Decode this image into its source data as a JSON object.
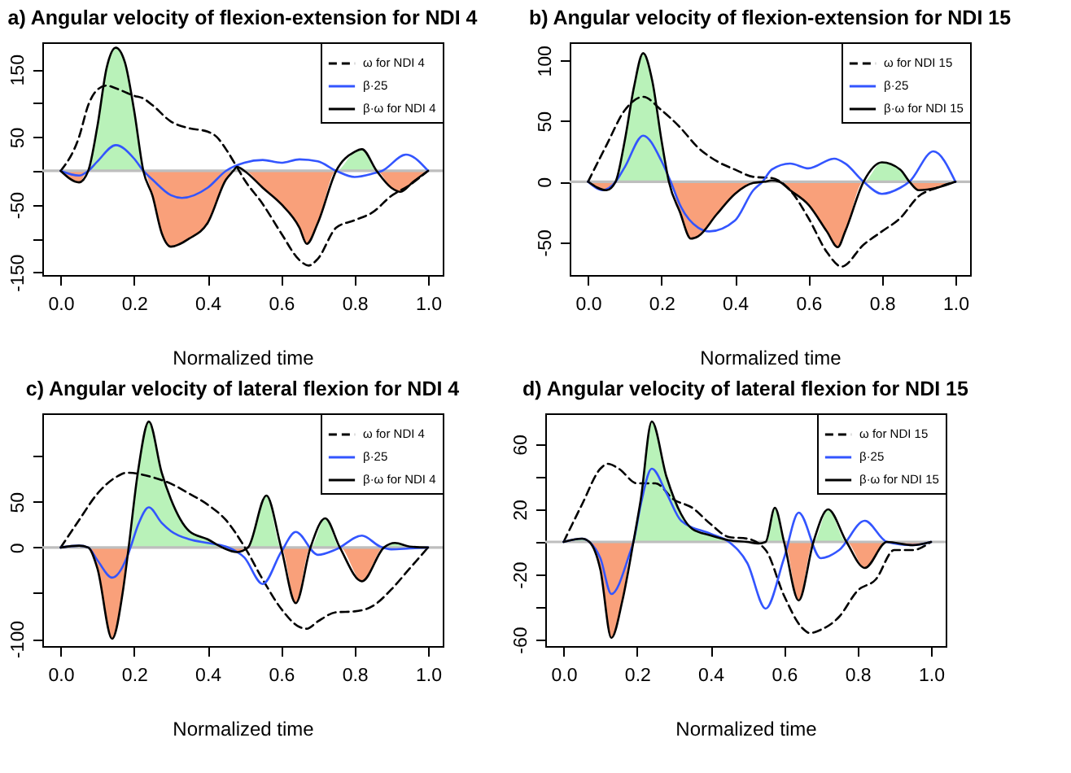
{
  "chart_data": [
    {
      "type": "line",
      "title": "a) Angular velocity of flexion-extension for NDI 4",
      "xlabel": "Normalized time",
      "xlim": [
        -0.05,
        1.04
      ],
      "xticks": [
        {
          "value": 0,
          "label": "0.0"
        },
        {
          "value": 0.2,
          "label": "0.2"
        },
        {
          "value": 0.4,
          "label": "0.4"
        },
        {
          "value": 0.6,
          "label": "0.6"
        },
        {
          "value": 0.8,
          "label": "0.8"
        },
        {
          "value": 1,
          "label": "1.0"
        }
      ],
      "ylim": [
        -154,
        190
      ],
      "yticks": [
        -150,
        {
          "value": -100,
          "label": null
        },
        -50,
        {
          "value": 0,
          "label": null
        },
        50,
        {
          "value": 100,
          "label": null
        },
        150
      ],
      "legend": "top right",
      "ref_lines": [
        {
          "axis": "y",
          "value": 0,
          "color": "#bebebe"
        }
      ],
      "series": [
        {
          "type": "area",
          "color": "#b9f2b9",
          "x": [
            0,
            0.05,
            0.075,
            0.1,
            0.125,
            0.15,
            0.175,
            0.2,
            0.225,
            0.25,
            0.275,
            0.3,
            0.35,
            0.4,
            0.45,
            0.47,
            0.48,
            0.5,
            0.55,
            0.6,
            0.65,
            0.67,
            0.7,
            0.75,
            0.8,
            0.82,
            0.86,
            0.9,
            0.925,
            0.96,
            1
          ],
          "values": [
            0,
            0,
            0,
            66,
            152,
            182,
            160,
            89,
            0,
            0,
            0,
            0,
            0,
            0,
            0,
            0,
            6,
            0,
            0,
            0,
            0,
            0,
            0,
            0,
            28,
            32,
            0,
            0,
            0,
            0,
            0
          ]
        },
        {
          "type": "area",
          "color": "#f9a07a",
          "x": [
            0,
            0.05,
            0.075,
            0.1,
            0.125,
            0.15,
            0.175,
            0.2,
            0.225,
            0.25,
            0.275,
            0.3,
            0.35,
            0.4,
            0.45,
            0.47,
            0.48,
            0.5,
            0.55,
            0.6,
            0.65,
            0.67,
            0.7,
            0.75,
            0.8,
            0.82,
            0.86,
            0.9,
            0.925,
            0.96,
            1
          ],
          "values": [
            0,
            -17,
            0,
            0,
            0,
            0,
            0,
            0,
            0,
            -37,
            -92,
            -112,
            -100,
            -77,
            -13,
            0,
            0,
            0,
            -25,
            -49,
            -84,
            -108,
            -77,
            0,
            0,
            0,
            0,
            -25,
            -31,
            -16,
            0
          ]
        },
        {
          "name": "ω for NDI 4",
          "color": "#000000",
          "line_style": "dashed",
          "x": [
            0,
            0.05,
            0.075,
            0.1,
            0.125,
            0.15,
            0.2,
            0.225,
            0.25,
            0.3,
            0.35,
            0.4,
            0.425,
            0.45,
            0.475,
            0.5,
            0.55,
            0.6,
            0.65,
            0.675,
            0.7,
            0.75,
            0.8,
            0.85,
            0.9,
            0.95,
            1
          ],
          "values": [
            0,
            50,
            97,
            120,
            126,
            122,
            111,
            107,
            97,
            73,
            63,
            58,
            50,
            32,
            10,
            -13,
            -49,
            -92,
            -132,
            -140,
            -130,
            -84,
            -73,
            -61,
            -37,
            -21,
            0
          ]
        },
        {
          "name": "β·25",
          "color": "#3355ff",
          "line_style": "solid",
          "x": [
            0,
            0.05,
            0.075,
            0.1,
            0.15,
            0.2,
            0.225,
            0.25,
            0.3,
            0.33,
            0.4,
            0.45,
            0.5,
            0.55,
            0.6,
            0.65,
            0.7,
            0.75,
            0.8,
            0.85,
            0.875,
            0.94,
            1
          ],
          "values": [
            0,
            -7,
            0,
            14,
            38,
            18,
            0,
            -13,
            -36,
            -40,
            -25,
            0,
            12,
            16,
            12,
            17,
            14,
            0,
            -9,
            -4,
            0,
            24,
            0
          ]
        },
        {
          "name": "β·ω for NDI 4",
          "color": "#000000",
          "line_style": "solid",
          "x": [
            0,
            0.05,
            0.075,
            0.1,
            0.125,
            0.15,
            0.175,
            0.2,
            0.225,
            0.25,
            0.275,
            0.3,
            0.35,
            0.4,
            0.45,
            0.47,
            0.48,
            0.5,
            0.55,
            0.6,
            0.65,
            0.67,
            0.7,
            0.75,
            0.8,
            0.82,
            0.86,
            0.9,
            0.925,
            0.96,
            1
          ],
          "values": [
            0,
            -17,
            0,
            66,
            152,
            182,
            160,
            89,
            0,
            -37,
            -92,
            -112,
            -100,
            -77,
            -13,
            0,
            6,
            0,
            -25,
            -49,
            -84,
            -108,
            -77,
            0,
            28,
            32,
            0,
            -25,
            -31,
            -16,
            0
          ]
        }
      ]
    },
    {
      "type": "line",
      "title": "b) Angular velocity of flexion-extension for NDI 15",
      "xlabel": "Normalized time",
      "xlim": [
        -0.05,
        1.04
      ],
      "xticks": [
        {
          "value": 0,
          "label": "0.0"
        },
        {
          "value": 0.2,
          "label": "0.2"
        },
        {
          "value": 0.4,
          "label": "0.4"
        },
        {
          "value": 0.6,
          "label": "0.6"
        },
        {
          "value": 0.8,
          "label": "0.8"
        },
        {
          "value": 1,
          "label": "1.0"
        }
      ],
      "ylim": [
        -77,
        115
      ],
      "yticks": [
        -50,
        0,
        50,
        100
      ],
      "legend": "top right",
      "ref_lines": [
        {
          "axis": "y",
          "value": 0,
          "color": "#bebebe"
        }
      ],
      "series": [
        {
          "type": "area",
          "color": "#b9f2b9",
          "x": [
            0,
            0.05,
            0.075,
            0.1,
            0.125,
            0.15,
            0.175,
            0.2,
            0.22,
            0.25,
            0.28,
            0.3,
            0.35,
            0.4,
            0.45,
            0.48,
            0.5,
            0.52,
            0.55,
            0.6,
            0.65,
            0.68,
            0.7,
            0.75,
            0.8,
            0.85,
            0.875,
            0.9,
            0.95,
            1
          ],
          "values": [
            0,
            0,
            0,
            34,
            78,
            106,
            83,
            34,
            0,
            0,
            0,
            0,
            0,
            0,
            0,
            0,
            1,
            0,
            0,
            0,
            0,
            0,
            0,
            0,
            16,
            10,
            0,
            0,
            0,
            0
          ]
        },
        {
          "type": "area",
          "color": "#f9a07a",
          "x": [
            0,
            0.05,
            0.075,
            0.1,
            0.125,
            0.15,
            0.175,
            0.2,
            0.22,
            0.25,
            0.28,
            0.3,
            0.35,
            0.4,
            0.45,
            0.48,
            0.5,
            0.52,
            0.55,
            0.6,
            0.65,
            0.68,
            0.7,
            0.75,
            0.8,
            0.85,
            0.875,
            0.9,
            0.95,
            1
          ],
          "values": [
            0,
            -7,
            0,
            0,
            0,
            0,
            0,
            0,
            0,
            -25,
            -47,
            -45,
            -27,
            -10,
            -1,
            0,
            0,
            0,
            -7,
            -19,
            -41,
            -54,
            -41,
            0,
            0,
            0,
            0,
            -7,
            -5,
            0
          ]
        },
        {
          "name": "ω for NDI 15",
          "color": "#000000",
          "line_style": "dashed",
          "x": [
            0,
            0.05,
            0.1,
            0.15,
            0.2,
            0.25,
            0.3,
            0.35,
            0.4,
            0.45,
            0.5,
            0.55,
            0.6,
            0.65,
            0.69,
            0.75,
            0.8,
            0.85,
            0.9,
            0.95,
            1
          ],
          "values": [
            0,
            30,
            59,
            70,
            59,
            45,
            28,
            17,
            10,
            4,
            3,
            -7,
            -30,
            -58,
            -70,
            -52,
            -41,
            -30,
            -12,
            -5,
            0
          ]
        },
        {
          "name": "β·25",
          "color": "#3355ff",
          "line_style": "solid",
          "x": [
            0,
            0.04,
            0.075,
            0.1,
            0.15,
            0.2,
            0.225,
            0.25,
            0.3,
            0.33,
            0.4,
            0.45,
            0.475,
            0.5,
            0.55,
            0.6,
            0.67,
            0.7,
            0.75,
            0.8,
            0.85,
            0.875,
            0.94,
            1
          ],
          "values": [
            0,
            -7,
            0,
            12,
            38,
            17,
            0,
            -19,
            -38,
            -41,
            -32,
            -7,
            0,
            10,
            15,
            11,
            19,
            15,
            0,
            -10,
            -5,
            0,
            25,
            0
          ]
        },
        {
          "name": "β·ω for NDI 15",
          "color": "#000000",
          "line_style": "solid",
          "x": [
            0,
            0.05,
            0.075,
            0.1,
            0.125,
            0.15,
            0.175,
            0.2,
            0.22,
            0.25,
            0.28,
            0.3,
            0.35,
            0.4,
            0.45,
            0.48,
            0.5,
            0.52,
            0.55,
            0.6,
            0.65,
            0.68,
            0.7,
            0.75,
            0.8,
            0.85,
            0.875,
            0.9,
            0.95,
            1
          ],
          "values": [
            0,
            -7,
            0,
            34,
            78,
            106,
            83,
            34,
            0,
            -25,
            -47,
            -45,
            -27,
            -10,
            -1,
            0,
            1,
            0,
            -7,
            -19,
            -41,
            -54,
            -41,
            0,
            16,
            10,
            0,
            -7,
            -5,
            0
          ]
        }
      ]
    },
    {
      "type": "line",
      "title": "c) Angular velocity of lateral flexion for NDI 4",
      "xlabel": "Normalized time",
      "xlim": [
        -0.05,
        1.04
      ],
      "xticks": [
        {
          "value": 0,
          "label": "0.0"
        },
        {
          "value": 0.2,
          "label": "0.2"
        },
        {
          "value": 0.4,
          "label": "0.4"
        },
        {
          "value": 0.6,
          "label": "0.6"
        },
        {
          "value": 0.8,
          "label": "0.8"
        },
        {
          "value": 1,
          "label": "1.0"
        }
      ],
      "ylim": [
        -108,
        147
      ],
      "yticks": [
        -100,
        {
          "value": -50,
          "label": null
        },
        0,
        50,
        {
          "value": 100,
          "label": null
        }
      ],
      "legend": "top right",
      "ref_lines": [
        {
          "axis": "y",
          "value": 0,
          "color": "#bebebe"
        }
      ],
      "series": [
        {
          "type": "area",
          "color": "#b9f2b9",
          "x": [
            0,
            0.05,
            0.075,
            0.1,
            0.14,
            0.17,
            0.185,
            0.21,
            0.24,
            0.275,
            0.3,
            0.35,
            0.4,
            0.44,
            0.48,
            0.51,
            0.56,
            0.6,
            0.64,
            0.68,
            0.72,
            0.76,
            0.82,
            0.88,
            0.91,
            0.95,
            1
          ],
          "values": [
            0,
            2,
            0,
            0,
            0,
            0,
            0,
            82,
            138,
            82,
            53,
            18,
            9,
            0,
            0,
            0,
            57,
            0,
            0,
            0,
            32,
            0,
            0,
            0,
            5,
            1,
            0
          ]
        },
        {
          "type": "area",
          "color": "#f9a07a",
          "x": [
            0,
            0.05,
            0.075,
            0.1,
            0.14,
            0.17,
            0.185,
            0.21,
            0.24,
            0.275,
            0.3,
            0.35,
            0.4,
            0.44,
            0.48,
            0.51,
            0.56,
            0.6,
            0.64,
            0.68,
            0.72,
            0.76,
            0.82,
            0.88,
            0.91,
            0.95,
            1
          ],
          "values": [
            0,
            0,
            0,
            -23,
            -100,
            -46,
            0,
            0,
            0,
            0,
            0,
            0,
            0,
            0,
            -5,
            0,
            0,
            0,
            -61,
            0,
            0,
            0,
            -37,
            0,
            0,
            0,
            0
          ]
        },
        {
          "name": "ω for NDI 4",
          "color": "#000000",
          "line_style": "dashed",
          "x": [
            0,
            0.05,
            0.1,
            0.15,
            0.18,
            0.25,
            0.3,
            0.35,
            0.4,
            0.45,
            0.5,
            0.55,
            0.6,
            0.65,
            0.67,
            0.7,
            0.75,
            0.8,
            0.85,
            0.9,
            0.95,
            1
          ],
          "values": [
            0,
            30,
            59,
            77,
            82,
            77,
            70,
            59,
            47,
            30,
            1,
            -35,
            -67,
            -87,
            -89,
            -81,
            -71,
            -70,
            -64,
            -46,
            -23,
            0
          ]
        },
        {
          "name": "β·25",
          "color": "#3355ff",
          "line_style": "solid",
          "x": [
            0,
            0.05,
            0.075,
            0.1,
            0.14,
            0.18,
            0.19,
            0.21,
            0.24,
            0.275,
            0.3,
            0.35,
            0.4,
            0.45,
            0.5,
            0.55,
            0.6,
            0.64,
            0.7,
            0.75,
            0.82,
            0.87,
            0.9,
            0.95,
            1
          ],
          "values": [
            0,
            2,
            0,
            -14,
            -33,
            -11,
            0,
            24,
            44,
            27,
            18,
            9,
            5,
            1,
            -11,
            -40,
            -5,
            17,
            -8,
            -2,
            13,
            1,
            -2,
            -1,
            0
          ]
        },
        {
          "name": "β·ω for NDI 4",
          "color": "#000000",
          "line_style": "solid",
          "x": [
            0,
            0.05,
            0.075,
            0.1,
            0.14,
            0.17,
            0.185,
            0.21,
            0.24,
            0.275,
            0.3,
            0.35,
            0.4,
            0.44,
            0.48,
            0.51,
            0.56,
            0.6,
            0.64,
            0.68,
            0.72,
            0.76,
            0.82,
            0.88,
            0.91,
            0.95,
            1
          ],
          "values": [
            0,
            2,
            0,
            -23,
            -100,
            -46,
            0,
            82,
            138,
            82,
            53,
            18,
            9,
            0,
            -5,
            0,
            57,
            0,
            -61,
            0,
            32,
            0,
            -37,
            0,
            5,
            1,
            0
          ]
        }
      ]
    },
    {
      "type": "line",
      "title": "d) Angular velocity of lateral flexion for NDI 15",
      "xlabel": "Normalized time",
      "xlim": [
        -0.05,
        1.04
      ],
      "xticks": [
        {
          "value": 0,
          "label": "0.0"
        },
        {
          "value": 0.2,
          "label": "0.2"
        },
        {
          "value": 0.4,
          "label": "0.4"
        },
        {
          "value": 0.6,
          "label": "0.6"
        },
        {
          "value": 0.8,
          "label": "0.8"
        },
        {
          "value": 1,
          "label": "1.0"
        }
      ],
      "ylim": [
        -64,
        79
      ],
      "yticks": [
        -60,
        {
          "value": -40,
          "label": null
        },
        -20,
        {
          "value": 0,
          "label": null
        },
        20,
        {
          "value": 40,
          "label": null
        },
        60
      ],
      "legend": "top right",
      "ref_lines": [
        {
          "axis": "y",
          "value": 0,
          "color": "#bebebe"
        }
      ],
      "series": [
        {
          "type": "area",
          "color": "#b9f2b9",
          "x": [
            0,
            0.05,
            0.07,
            0.1,
            0.13,
            0.16,
            0.19,
            0.21,
            0.24,
            0.28,
            0.32,
            0.35,
            0.4,
            0.45,
            0.5,
            0.53,
            0.55,
            0.575,
            0.6,
            0.64,
            0.68,
            0.72,
            0.77,
            0.82,
            0.88,
            0.95,
            1
          ],
          "values": [
            0,
            2,
            0,
            0,
            0,
            0,
            0,
            26,
            74,
            40,
            17,
            8,
            4,
            1,
            0,
            0,
            0,
            21,
            0,
            0,
            0,
            20,
            0,
            0,
            0,
            0,
            0
          ]
        },
        {
          "type": "area",
          "color": "#f9a07a",
          "x": [
            0,
            0.05,
            0.07,
            0.1,
            0.13,
            0.16,
            0.19,
            0.21,
            0.24,
            0.28,
            0.32,
            0.35,
            0.4,
            0.45,
            0.5,
            0.53,
            0.55,
            0.575,
            0.6,
            0.64,
            0.68,
            0.72,
            0.77,
            0.82,
            0.88,
            0.95,
            1
          ],
          "values": [
            0,
            0,
            0,
            -17,
            -59,
            -36,
            0,
            0,
            0,
            0,
            0,
            0,
            0,
            0,
            0,
            -1,
            0,
            0,
            0,
            -36,
            0,
            0,
            0,
            -16,
            0,
            -2,
            0
          ]
        },
        {
          "name": "ω for NDI 15",
          "color": "#000000",
          "line_style": "dashed",
          "x": [
            0,
            0.05,
            0.1,
            0.12,
            0.15,
            0.2,
            0.25,
            0.3,
            0.35,
            0.4,
            0.45,
            0.5,
            0.55,
            0.6,
            0.65,
            0.67,
            0.7,
            0.75,
            0.8,
            0.85,
            0.9,
            0.95,
            1
          ],
          "values": [
            0,
            23,
            45,
            48,
            45,
            36,
            36,
            26,
            21,
            11,
            3,
            2,
            -5,
            -33,
            -53,
            -56,
            -54,
            -46,
            -30,
            -23,
            -5,
            -5,
            0
          ]
        },
        {
          "name": "β·25",
          "color": "#3355ff",
          "line_style": "solid",
          "x": [
            0,
            0.05,
            0.07,
            0.1,
            0.13,
            0.18,
            0.19,
            0.21,
            0.24,
            0.28,
            0.32,
            0.4,
            0.45,
            0.5,
            0.55,
            0.6,
            0.64,
            0.7,
            0.75,
            0.82,
            0.88,
            0.95,
            1
          ],
          "values": [
            0,
            2,
            0,
            -10,
            -32,
            -7,
            0,
            23,
            45,
            30,
            13,
            5,
            0,
            -13,
            -41,
            -10,
            18,
            -10,
            -5,
            13,
            0,
            -2,
            0
          ]
        },
        {
          "name": "β·ω for NDI 15",
          "color": "#000000",
          "line_style": "solid",
          "x": [
            0,
            0.05,
            0.07,
            0.1,
            0.13,
            0.16,
            0.19,
            0.21,
            0.24,
            0.28,
            0.32,
            0.35,
            0.4,
            0.45,
            0.5,
            0.53,
            0.55,
            0.575,
            0.6,
            0.64,
            0.68,
            0.72,
            0.77,
            0.82,
            0.88,
            0.95,
            1
          ],
          "values": [
            0,
            2,
            0,
            -17,
            -59,
            -36,
            0,
            26,
            74,
            40,
            17,
            8,
            4,
            1,
            0,
            -1,
            0,
            21,
            0,
            -36,
            0,
            20,
            0,
            -16,
            0,
            -2,
            0
          ]
        }
      ]
    }
  ]
}
